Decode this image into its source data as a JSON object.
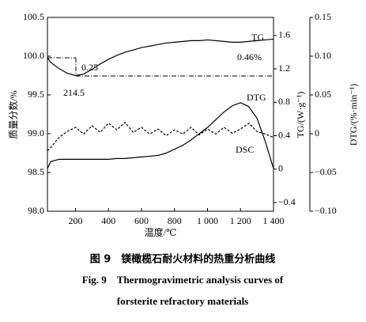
{
  "chart_data": {
    "type": "line",
    "caption_cn": "图 9　镁橄榄石耐火材料的热重分析曲线",
    "caption_en_1": "Fig. 9　Thermogravimetric analysis curves of",
    "caption_en_2": "forsterite refractory materials",
    "x_label": "温度/℃",
    "y_label": "质量分数/%",
    "y2_label": "TG/(W·g⁻¹)",
    "y3_label": "DTG/(%·min⁻¹)",
    "annotations": [
      "TG",
      "0.46%",
      "0.25",
      "214.5",
      "DTG",
      "DSC"
    ],
    "xlim": [
      30,
      1400
    ],
    "xticks": [
      200,
      400,
      600,
      800,
      {
        "value": 1000,
        "label": "1 000"
      },
      {
        "value": 1200,
        "label": "1 200"
      },
      {
        "value": 1400,
        "label": "1 400"
      }
    ],
    "ylim": [
      98.0,
      100.5
    ],
    "yticks": [
      {
        "value": 98.0,
        "label": "98.0"
      },
      98.5,
      {
        "value": 99.0,
        "label": "99.0"
      },
      99.5,
      {
        "value": 100.0,
        "label": "100.0"
      },
      100.5
    ],
    "y2lim": [
      -0.504,
      1.816
    ],
    "y2ticks": [
      {
        "value": -0.4,
        "label": "−0.4"
      },
      0,
      0.4,
      0.8,
      1.2,
      1.6
    ],
    "y3lim": [
      -0.1,
      0.15
    ],
    "y3ticks": [
      {
        "value": -0.1,
        "label": "−0.10"
      },
      {
        "value": -0.05,
        "label": "−0.05"
      },
      0,
      0.05,
      {
        "value": 0.1,
        "label": "0.10"
      },
      0.15
    ],
    "x": [
      30,
      50,
      100,
      150,
      200,
      250,
      300,
      350,
      400,
      450,
      500,
      550,
      600,
      650,
      700,
      750,
      800,
      850,
      900,
      950,
      1000,
      1050,
      1100,
      1150,
      1200,
      1250,
      1300,
      1350,
      1400
    ],
    "series": [
      {
        "name": "TG",
        "color": "#000000",
        "axis": "y",
        "dash": "none",
        "values": [
          99.98,
          99.92,
          99.84,
          99.78,
          99.75,
          99.77,
          99.83,
          99.9,
          99.96,
          100.01,
          100.05,
          100.08,
          100.11,
          100.13,
          100.15,
          100.17,
          100.18,
          100.19,
          100.2,
          100.2,
          100.21,
          100.2,
          100.19,
          100.18,
          100.18,
          100.19,
          100.2,
          100.21,
          100.22
        ]
      },
      {
        "name": "DSC",
        "color": "#000000",
        "axis": "y2",
        "dash": "3,2",
        "values": [
          0.22,
          0.26,
          0.38,
          0.45,
          0.5,
          0.42,
          0.52,
          0.44,
          0.55,
          0.47,
          0.56,
          0.44,
          0.5,
          0.42,
          0.48,
          0.4,
          0.47,
          0.42,
          0.5,
          0.41,
          0.48,
          0.42,
          0.5,
          0.43,
          0.48,
          0.55,
          0.45,
          0.42,
          0.38
        ]
      },
      {
        "name": "DTG",
        "color": "#000000",
        "axis": "y3",
        "dash": "none",
        "values": [
          -0.045,
          -0.036,
          -0.033,
          -0.033,
          -0.033,
          -0.033,
          -0.033,
          -0.033,
          -0.033,
          -0.032,
          -0.032,
          -0.031,
          -0.03,
          -0.029,
          -0.028,
          -0.025,
          -0.02,
          -0.015,
          -0.008,
          0.0,
          0.008,
          0.018,
          0.028,
          0.036,
          0.04,
          0.035,
          0.02,
          -0.01,
          -0.045
        ]
      }
    ]
  }
}
